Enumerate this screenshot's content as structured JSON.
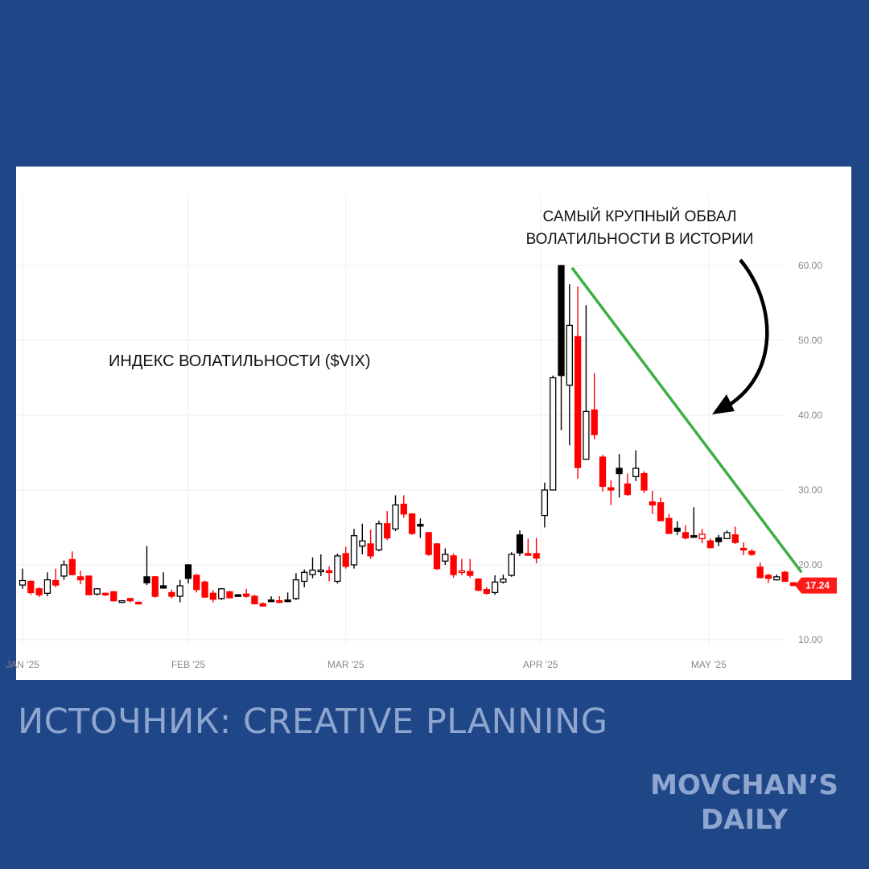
{
  "chart_data": {
    "type": "candlestick",
    "title": "ИНДЕКС ВОЛАТИЛЬНОСТИ ($VIX)",
    "annotation": "САМЫЙ КРУПНЫЙ ОБВАЛ ВОЛАТИЛЬНОСТИ В ИСТОРИИ",
    "annotation_lines": [
      "САМЫЙ КРУПНЫЙ ОБВАЛ",
      "ВОЛАТИЛЬНОСТИ В ИСТОРИИ"
    ],
    "ylim": [
      10,
      60
    ],
    "yticks": [
      "60.00",
      "50.00",
      "40.00",
      "30.00",
      "20.00",
      "10.00"
    ],
    "ytick_values": [
      60,
      50,
      40,
      30,
      20,
      10
    ],
    "x_month_labels": [
      {
        "label": "JAN '25",
        "candle_index": 0
      },
      {
        "label": "FEB '25",
        "candle_index": 20
      },
      {
        "label": "MAR '25",
        "candle_index": 39
      },
      {
        "label": "APR '25",
        "candle_index": 62.5
      },
      {
        "label": "MAY '25",
        "candle_index": 82.8
      }
    ],
    "grid": true,
    "last_price_label": "17.24",
    "last_price": 17.24,
    "colors": {
      "up": "#000000",
      "down": "#ff0000",
      "trendline": "#3cb043",
      "price_tag": "#ff1a1a",
      "grid": "#eeeeee",
      "axis_text": "#888888"
    },
    "trendline": {
      "from": {
        "candle_index": 66.3,
        "value": 59.7
      },
      "to": {
        "candle_index": 94,
        "value": 19.0
      }
    },
    "candles": [
      {
        "o": 17.3,
        "h": 19.5,
        "l": 16.8,
        "c": 17.9,
        "col": "black"
      },
      {
        "o": 17.8,
        "h": 17.9,
        "l": 16.0,
        "c": 16.3,
        "col": "red"
      },
      {
        "o": 16.8,
        "h": 17.0,
        "l": 15.7,
        "c": 16.0,
        "col": "red"
      },
      {
        "o": 16.2,
        "h": 19.0,
        "l": 15.8,
        "c": 18.0,
        "col": "black"
      },
      {
        "o": 17.9,
        "h": 19.5,
        "l": 17.0,
        "c": 17.3,
        "col": "red"
      },
      {
        "o": 18.5,
        "h": 20.6,
        "l": 18.0,
        "c": 20.0,
        "col": "black"
      },
      {
        "o": 20.7,
        "h": 21.8,
        "l": 18.6,
        "c": 18.7,
        "col": "red"
      },
      {
        "o": 18.4,
        "h": 19.2,
        "l": 17.4,
        "c": 18.0,
        "col": "red"
      },
      {
        "o": 18.5,
        "h": 18.5,
        "l": 16.0,
        "c": 16.0,
        "col": "red"
      },
      {
        "o": 16.1,
        "h": 16.9,
        "l": 15.9,
        "c": 16.8,
        "col": "black"
      },
      {
        "o": 16.2,
        "h": 16.3,
        "l": 15.8,
        "c": 16.0,
        "col": "red"
      },
      {
        "o": 16.4,
        "h": 16.5,
        "l": 15.1,
        "c": 15.2,
        "col": "red"
      },
      {
        "o": 15.1,
        "h": 15.3,
        "l": 14.9,
        "c": 15.2,
        "col": "black"
      },
      {
        "o": 15.5,
        "h": 15.6,
        "l": 15.0,
        "c": 15.2,
        "col": "red"
      },
      {
        "o": 15.0,
        "h": 15.1,
        "l": 14.7,
        "c": 14.9,
        "col": "red"
      },
      {
        "o": 18.4,
        "h": 22.5,
        "l": 17.3,
        "c": 17.6,
        "col": "black"
      },
      {
        "o": 18.4,
        "h": 18.5,
        "l": 15.6,
        "c": 15.8,
        "col": "red"
      },
      {
        "o": 17.2,
        "h": 19.0,
        "l": 16.8,
        "c": 16.9,
        "col": "black"
      },
      {
        "o": 16.3,
        "h": 16.7,
        "l": 15.5,
        "c": 15.8,
        "col": "red"
      },
      {
        "o": 15.8,
        "h": 18.0,
        "l": 15.0,
        "c": 17.2,
        "col": "black"
      },
      {
        "o": 20.0,
        "h": 20.1,
        "l": 17.5,
        "c": 18.2,
        "col": "black"
      },
      {
        "o": 18.6,
        "h": 18.8,
        "l": 16.3,
        "c": 16.7,
        "col": "red"
      },
      {
        "o": 17.7,
        "h": 17.9,
        "l": 15.6,
        "c": 15.7,
        "col": "red"
      },
      {
        "o": 16.2,
        "h": 16.6,
        "l": 15.0,
        "c": 15.4,
        "col": "red"
      },
      {
        "o": 15.5,
        "h": 16.9,
        "l": 15.3,
        "c": 16.8,
        "col": "black"
      },
      {
        "o": 16.4,
        "h": 16.5,
        "l": 15.6,
        "c": 15.6,
        "col": "red"
      },
      {
        "o": 16.0,
        "h": 16.1,
        "l": 15.8,
        "c": 15.9,
        "col": "black"
      },
      {
        "o": 16.1,
        "h": 16.8,
        "l": 15.6,
        "c": 15.8,
        "col": "red"
      },
      {
        "o": 15.8,
        "h": 16.0,
        "l": 14.7,
        "c": 14.8,
        "col": "red"
      },
      {
        "o": 14.8,
        "h": 15.0,
        "l": 14.4,
        "c": 14.5,
        "col": "red"
      },
      {
        "o": 15.3,
        "h": 15.8,
        "l": 15.1,
        "c": 15.2,
        "col": "black"
      },
      {
        "o": 15.2,
        "h": 15.8,
        "l": 14.9,
        "c": 15.0,
        "col": "red"
      },
      {
        "o": 15.3,
        "h": 16.3,
        "l": 15.0,
        "c": 15.3,
        "col": "black"
      },
      {
        "o": 15.5,
        "h": 18.9,
        "l": 15.3,
        "c": 18.0,
        "col": "black"
      },
      {
        "o": 17.8,
        "h": 19.4,
        "l": 17.0,
        "c": 19.0,
        "col": "black"
      },
      {
        "o": 18.7,
        "h": 21.0,
        "l": 18.2,
        "c": 19.3,
        "col": "black"
      },
      {
        "o": 19.1,
        "h": 21.4,
        "l": 18.5,
        "c": 19.3,
        "col": "black"
      },
      {
        "o": 19.2,
        "h": 19.8,
        "l": 17.8,
        "c": 19.0,
        "col": "red"
      },
      {
        "o": 17.8,
        "h": 21.5,
        "l": 17.5,
        "c": 21.2,
        "col": "black"
      },
      {
        "o": 21.5,
        "h": 22.4,
        "l": 19.5,
        "c": 19.8,
        "col": "red"
      },
      {
        "o": 20.0,
        "h": 24.8,
        "l": 19.5,
        "c": 23.9,
        "col": "black"
      },
      {
        "o": 22.5,
        "h": 25.5,
        "l": 21.4,
        "c": 23.2,
        "col": "black"
      },
      {
        "o": 22.8,
        "h": 24.7,
        "l": 20.8,
        "c": 21.2,
        "col": "red"
      },
      {
        "o": 22.0,
        "h": 25.9,
        "l": 21.8,
        "c": 25.5,
        "col": "black"
      },
      {
        "o": 25.5,
        "h": 27.2,
        "l": 23.3,
        "c": 23.6,
        "col": "red"
      },
      {
        "o": 24.8,
        "h": 29.3,
        "l": 24.5,
        "c": 28.0,
        "col": "black"
      },
      {
        "o": 28.1,
        "h": 29.3,
        "l": 26.3,
        "c": 26.8,
        "col": "red"
      },
      {
        "o": 26.8,
        "h": 26.9,
        "l": 24.0,
        "c": 24.2,
        "col": "red"
      },
      {
        "o": 25.4,
        "h": 26.2,
        "l": 23.6,
        "c": 25.3,
        "col": "black"
      },
      {
        "o": 24.3,
        "h": 24.4,
        "l": 21.2,
        "c": 21.4,
        "col": "red"
      },
      {
        "o": 22.8,
        "h": 22.9,
        "l": 19.3,
        "c": 19.5,
        "col": "red"
      },
      {
        "o": 20.5,
        "h": 22.2,
        "l": 20.0,
        "c": 21.4,
        "col": "black"
      },
      {
        "o": 21.2,
        "h": 21.5,
        "l": 18.3,
        "c": 18.7,
        "col": "red"
      },
      {
        "o": 19.1,
        "h": 20.8,
        "l": 18.6,
        "c": 19.2,
        "col": "red"
      },
      {
        "o": 19.1,
        "h": 20.8,
        "l": 18.3,
        "c": 18.6,
        "col": "red"
      },
      {
        "o": 18.1,
        "h": 18.2,
        "l": 16.5,
        "c": 16.6,
        "col": "red"
      },
      {
        "o": 16.7,
        "h": 17.0,
        "l": 16.0,
        "c": 16.2,
        "col": "red"
      },
      {
        "o": 16.3,
        "h": 18.6,
        "l": 16.0,
        "c": 17.7,
        "col": "black"
      },
      {
        "o": 17.7,
        "h": 18.7,
        "l": 17.5,
        "c": 18.1,
        "col": "black"
      },
      {
        "o": 18.6,
        "h": 21.7,
        "l": 18.4,
        "c": 21.4,
        "col": "black"
      },
      {
        "o": 24.0,
        "h": 24.6,
        "l": 21.2,
        "c": 21.6,
        "col": "black"
      },
      {
        "o": 21.5,
        "h": 23.5,
        "l": 21.2,
        "c": 21.5,
        "col": "red"
      },
      {
        "o": 21.5,
        "h": 23.6,
        "l": 20.2,
        "c": 20.9,
        "col": "red"
      },
      {
        "o": 26.6,
        "h": 31.0,
        "l": 25.0,
        "c": 30.0,
        "col": "black"
      },
      {
        "o": 30.0,
        "h": 45.3,
        "l": 30.0,
        "c": 45.0,
        "col": "black"
      },
      {
        "o": 60.0,
        "h": 60.0,
        "l": 38.0,
        "c": 45.3,
        "col": "black"
      },
      {
        "o": 44.0,
        "h": 57.5,
        "l": 36.0,
        "c": 52.0,
        "col": "black"
      },
      {
        "o": 50.5,
        "h": 57.2,
        "l": 31.5,
        "c": 33.0,
        "col": "red"
      },
      {
        "o": 34.1,
        "h": 54.7,
        "l": 34.0,
        "c": 40.5,
        "col": "black"
      },
      {
        "o": 40.7,
        "h": 45.6,
        "l": 36.8,
        "c": 37.4,
        "col": "red"
      },
      {
        "o": 34.4,
        "h": 34.7,
        "l": 29.8,
        "c": 30.5,
        "col": "red"
      },
      {
        "o": 30.3,
        "h": 31.3,
        "l": 28.0,
        "c": 30.0,
        "col": "red"
      },
      {
        "o": 32.9,
        "h": 34.8,
        "l": 29.0,
        "c": 32.2,
        "col": "black"
      },
      {
        "o": 30.8,
        "h": 32.2,
        "l": 29.2,
        "c": 29.4,
        "col": "red"
      },
      {
        "o": 31.8,
        "h": 35.3,
        "l": 31.2,
        "c": 32.9,
        "col": "black"
      },
      {
        "o": 32.2,
        "h": 32.5,
        "l": 29.6,
        "c": 30.0,
        "col": "red"
      },
      {
        "o": 28.4,
        "h": 29.9,
        "l": 26.8,
        "c": 28.0,
        "col": "red"
      },
      {
        "o": 28.3,
        "h": 29.0,
        "l": 25.9,
        "c": 25.9,
        "col": "red"
      },
      {
        "o": 26.2,
        "h": 26.8,
        "l": 24.2,
        "c": 24.2,
        "col": "red"
      },
      {
        "o": 24.9,
        "h": 25.8,
        "l": 24.0,
        "c": 24.5,
        "col": "black"
      },
      {
        "o": 24.3,
        "h": 25.3,
        "l": 23.4,
        "c": 23.6,
        "col": "red"
      },
      {
        "o": 23.9,
        "h": 27.7,
        "l": 23.7,
        "c": 23.8,
        "col": "black"
      },
      {
        "o": 23.5,
        "h": 24.8,
        "l": 22.9,
        "c": 24.1,
        "col": "red"
      },
      {
        "o": 23.2,
        "h": 23.5,
        "l": 22.2,
        "c": 22.3,
        "col": "red"
      },
      {
        "o": 23.6,
        "h": 24.0,
        "l": 22.5,
        "c": 23.1,
        "col": "black"
      },
      {
        "o": 23.5,
        "h": 24.6,
        "l": 23.5,
        "c": 24.3,
        "col": "black"
      },
      {
        "o": 24.0,
        "h": 25.1,
        "l": 22.8,
        "c": 23.0,
        "col": "red"
      },
      {
        "o": 22.2,
        "h": 23.0,
        "l": 21.3,
        "c": 22.0,
        "col": "red"
      },
      {
        "o": 21.8,
        "h": 22.1,
        "l": 21.2,
        "c": 21.4,
        "col": "red"
      },
      {
        "o": 19.7,
        "h": 20.3,
        "l": 18.2,
        "c": 18.3,
        "col": "red"
      },
      {
        "o": 18.6,
        "h": 18.8,
        "l": 17.6,
        "c": 18.2,
        "col": "red"
      },
      {
        "o": 18.0,
        "h": 18.7,
        "l": 17.9,
        "c": 18.4,
        "col": "black"
      },
      {
        "o": 19.0,
        "h": 19.2,
        "l": 17.8,
        "c": 17.8,
        "col": "red"
      },
      {
        "o": 17.6,
        "h": 17.7,
        "l": 17.2,
        "c": 17.24,
        "col": "red"
      }
    ]
  },
  "footer": {
    "source": "ИСТОЧНИК: CREATIVE PLANNING",
    "brand_line1": "MOVCHAN’S",
    "brand_line2": "DAILY"
  }
}
